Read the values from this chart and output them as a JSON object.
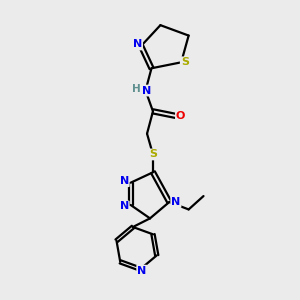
{
  "background_color": "#ebebeb",
  "atom_colors": {
    "C": "#000000",
    "N": "#0000ee",
    "O": "#ee0000",
    "S": "#aaaa00",
    "H": "#5f8f8f"
  },
  "bond_color": "#000000",
  "bond_width": 1.6,
  "fig_width": 3.0,
  "fig_height": 3.0,
  "dpi": 100
}
